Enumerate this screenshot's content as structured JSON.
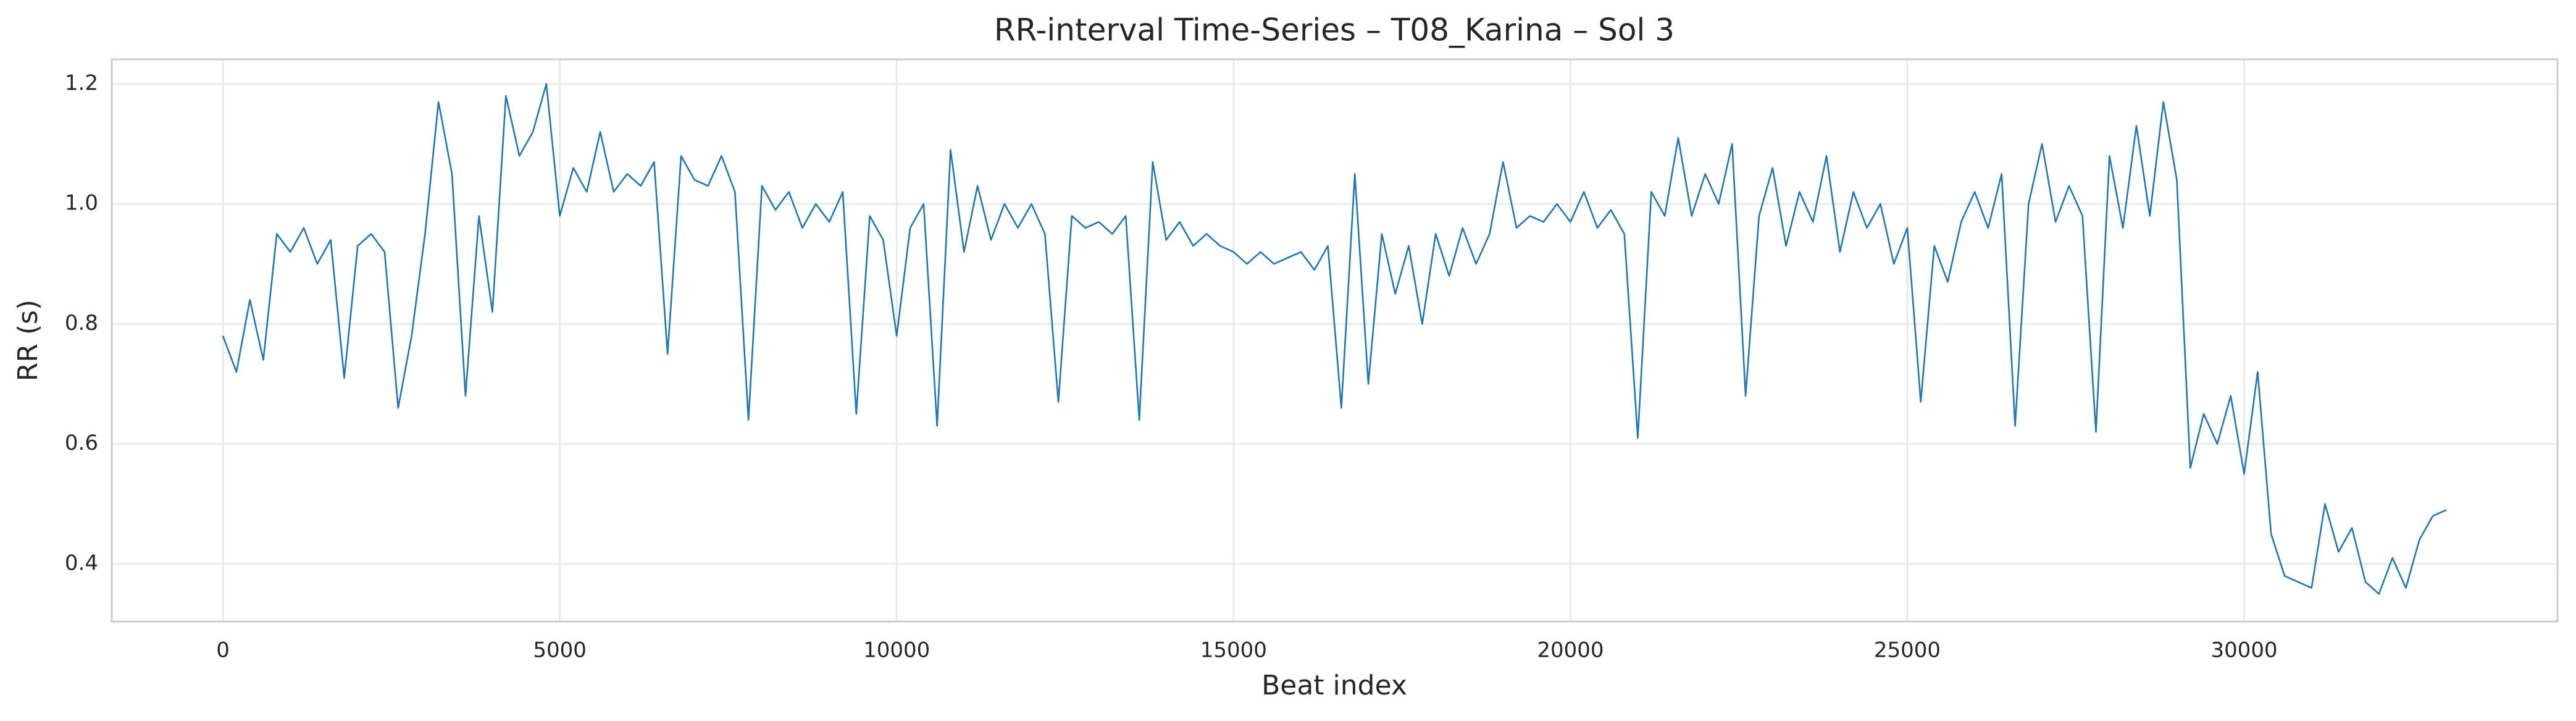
{
  "chart_data": {
    "type": "line",
    "title": "RR-interval Time-Series – T08_Karina – Sol 3",
    "x_label": "Beat index",
    "y_label": "RR (s)",
    "color": "#1f77b4",
    "grid": true,
    "xlim": [
      -1650,
      34650
    ],
    "ylim": [
      0.304,
      1.241
    ],
    "xticks": [
      0,
      5000,
      10000,
      15000,
      20000,
      25000,
      30000
    ],
    "yticks": [
      0.4,
      0.6,
      0.8,
      {
        "value": 1,
        "label": "1.0"
      },
      1.2
    ],
    "x": [
      0,
      200,
      400,
      600,
      800,
      1000,
      1200,
      1400,
      1600,
      1800,
      2000,
      2200,
      2400,
      2600,
      2800,
      3000,
      3200,
      3400,
      3600,
      3800,
      4000,
      4200,
      4400,
      4600,
      4800,
      5000,
      5200,
      5400,
      5600,
      5800,
      6000,
      6200,
      6400,
      6600,
      6800,
      7000,
      7200,
      7400,
      7600,
      7800,
      8000,
      8200,
      8400,
      8600,
      8800,
      9000,
      9200,
      9400,
      9600,
      9800,
      10000,
      10200,
      10400,
      10600,
      10800,
      11000,
      11200,
      11400,
      11600,
      11800,
      12000,
      12200,
      12400,
      12600,
      12800,
      13000,
      13200,
      13400,
      13600,
      13800,
      14000,
      14200,
      14400,
      14600,
      14800,
      15000,
      15200,
      15400,
      15600,
      15800,
      16000,
      16200,
      16400,
      16600,
      16800,
      17000,
      17200,
      17400,
      17600,
      17800,
      18000,
      18200,
      18400,
      18600,
      18800,
      19000,
      19200,
      19400,
      19600,
      19800,
      20000,
      20200,
      20400,
      20600,
      20800,
      21000,
      21200,
      21400,
      21600,
      21800,
      22000,
      22200,
      22400,
      22600,
      22800,
      23000,
      23200,
      23400,
      23600,
      23800,
      24000,
      24200,
      24400,
      24600,
      24800,
      25000,
      25200,
      25400,
      25600,
      25800,
      26000,
      26200,
      26400,
      26600,
      26800,
      27000,
      27200,
      27400,
      27600,
      27800,
      28000,
      28200,
      28400,
      28600,
      28800,
      29000,
      29200,
      29400,
      29600,
      29800,
      30000,
      30200,
      30400,
      30600,
      30800,
      31000,
      31200,
      31400,
      31600,
      31800,
      32000,
      32200,
      32400,
      32600,
      32800,
      33000
    ],
    "values": [
      0.78,
      0.72,
      0.84,
      0.74,
      0.95,
      0.92,
      0.96,
      0.9,
      0.94,
      0.71,
      0.93,
      0.95,
      0.92,
      0.66,
      0.78,
      0.95,
      1.17,
      1.05,
      0.68,
      0.98,
      0.82,
      1.18,
      1.08,
      1.12,
      1.2,
      0.98,
      1.06,
      1.02,
      1.12,
      1.02,
      1.05,
      1.03,
      1.07,
      0.75,
      1.08,
      1.04,
      1.03,
      1.08,
      1.02,
      0.64,
      1.03,
      0.99,
      1.02,
      0.96,
      1.0,
      0.97,
      1.02,
      0.65,
      0.98,
      0.94,
      0.78,
      0.96,
      1.0,
      0.63,
      1.09,
      0.92,
      1.03,
      0.94,
      1.0,
      0.96,
      1.0,
      0.95,
      0.67,
      0.98,
      0.96,
      0.97,
      0.95,
      0.98,
      0.64,
      1.07,
      0.94,
      0.97,
      0.93,
      0.95,
      0.93,
      0.92,
      0.9,
      0.92,
      0.9,
      0.91,
      0.92,
      0.89,
      0.93,
      0.66,
      1.05,
      0.7,
      0.95,
      0.85,
      0.93,
      0.8,
      0.95,
      0.88,
      0.96,
      0.9,
      0.95,
      1.07,
      0.96,
      0.98,
      0.97,
      1.0,
      0.97,
      1.02,
      0.96,
      0.99,
      0.95,
      0.61,
      1.02,
      0.98,
      1.11,
      0.98,
      1.05,
      1.0,
      1.1,
      0.68,
      0.98,
      1.06,
      0.93,
      1.02,
      0.97,
      1.08,
      0.92,
      1.02,
      0.96,
      1.0,
      0.9,
      0.96,
      0.67,
      0.93,
      0.87,
      0.97,
      1.02,
      0.96,
      1.05,
      0.63,
      1.0,
      1.1,
      0.97,
      1.03,
      0.98,
      0.62,
      1.08,
      0.96,
      1.13,
      0.98,
      1.17,
      1.04,
      0.56,
      0.65,
      0.6,
      0.68,
      0.55,
      0.72,
      0.45,
      0.38,
      0.37,
      0.36,
      0.5,
      0.42,
      0.46,
      0.37,
      0.35,
      0.41,
      0.36,
      0.44,
      0.48,
      0.49
    ]
  }
}
